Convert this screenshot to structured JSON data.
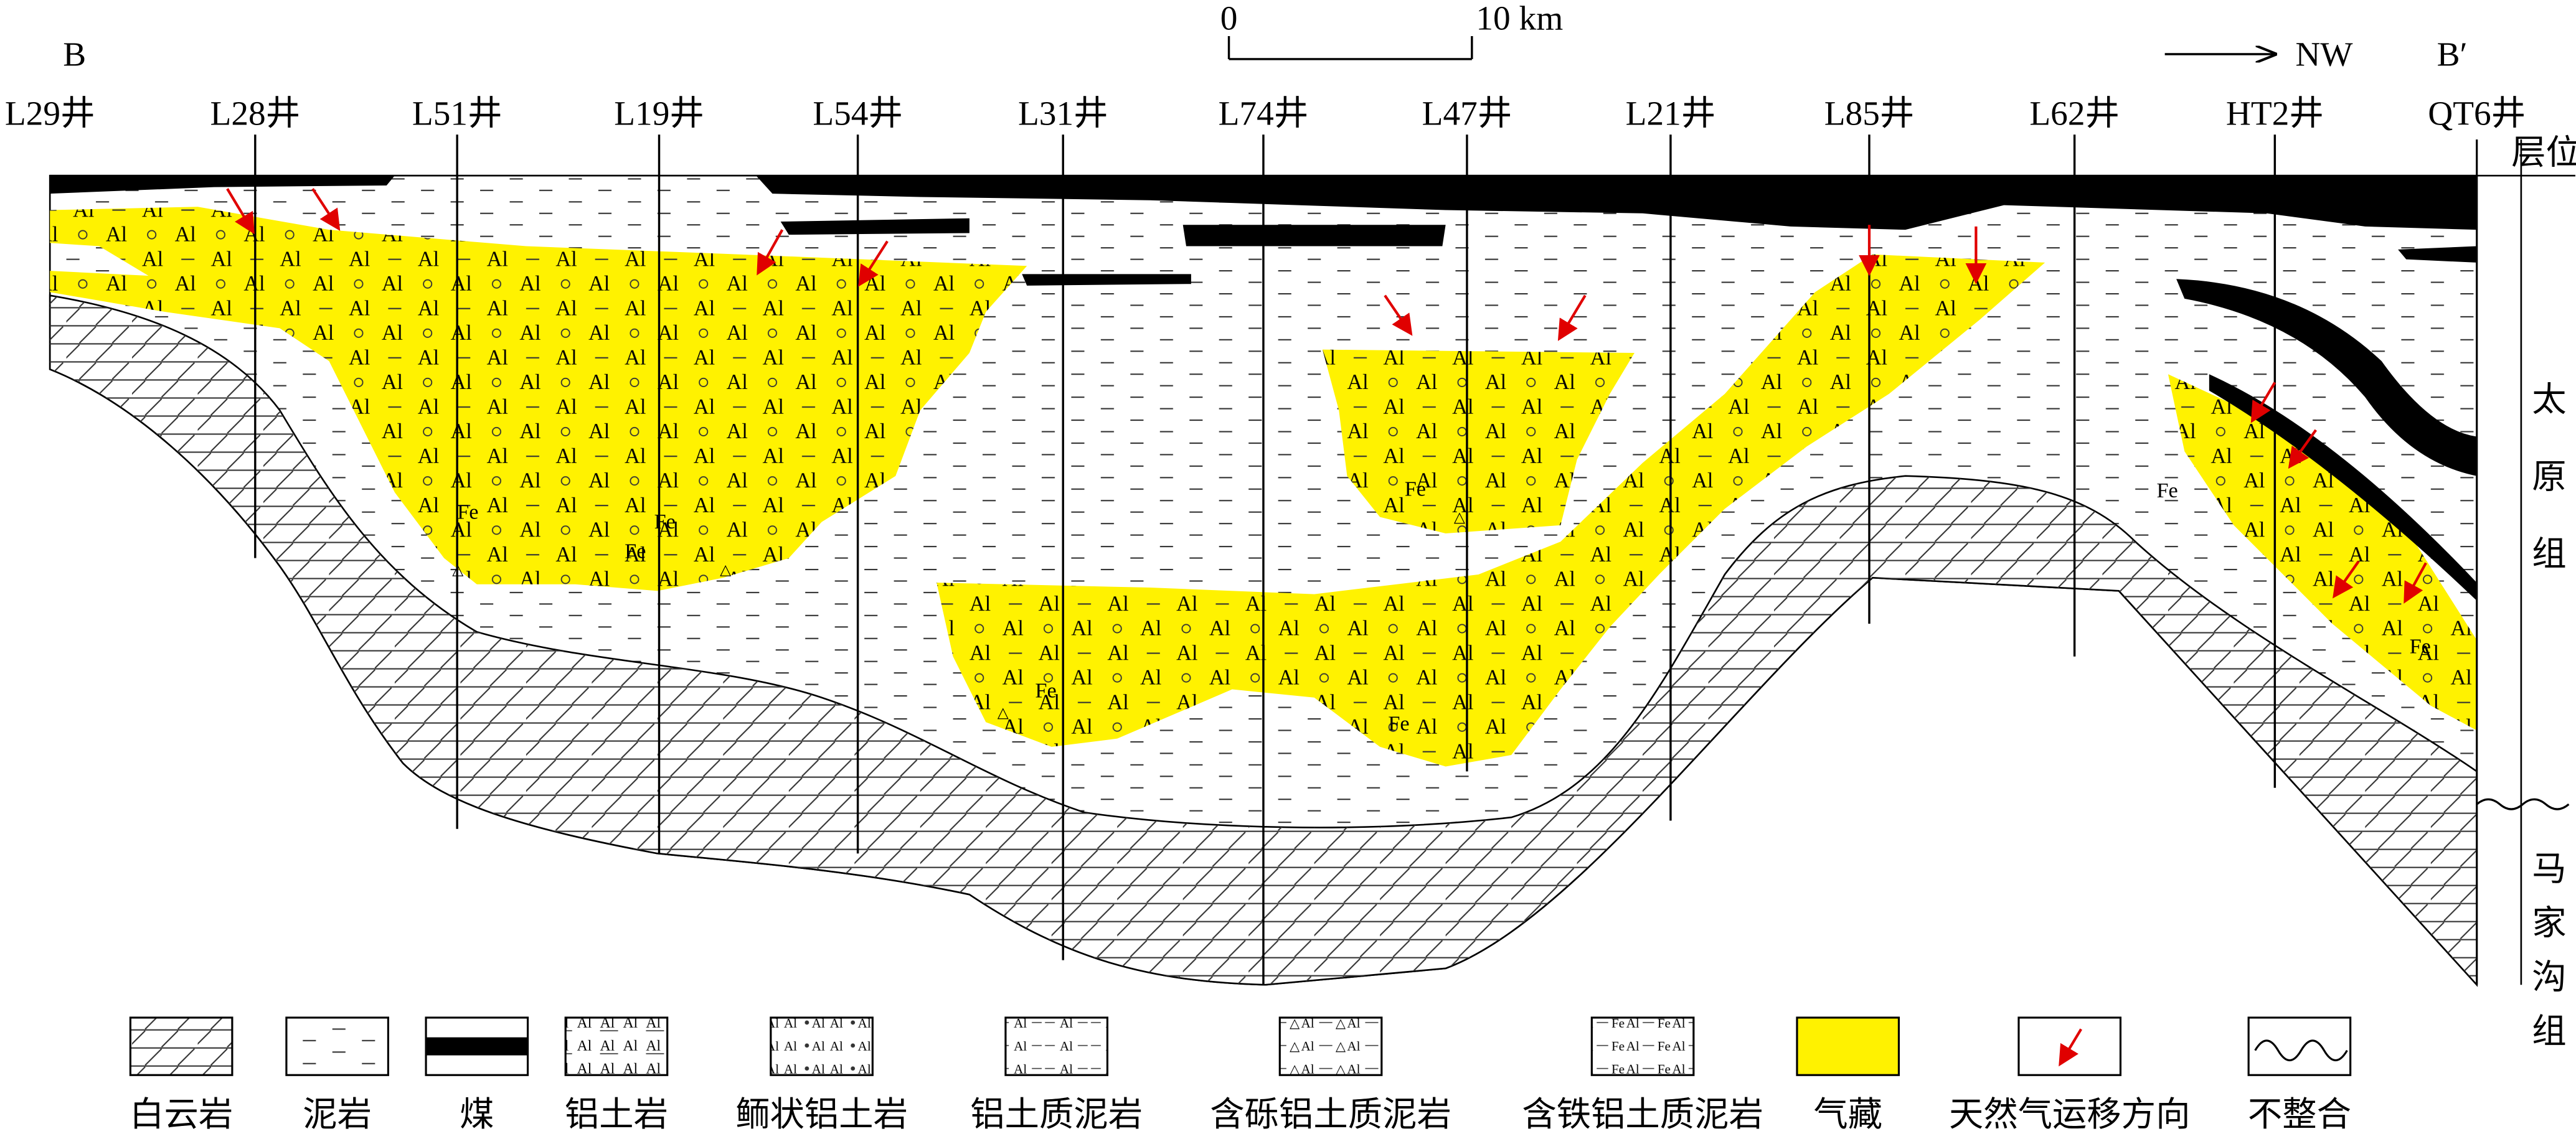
{
  "header": {
    "start_label": "B",
    "end_label": "B′",
    "direction": "NW",
    "scale_start": "0",
    "scale_end": "10 km"
  },
  "wells": [
    "L29井",
    "L28井",
    "L51井",
    "L19井",
    "L54井",
    "L31井",
    "L74井",
    "L47井",
    "L21井",
    "L85井",
    "L62井",
    "HT2井",
    "QT6井"
  ],
  "strata": {
    "column_title": "层位",
    "upper": "太原组",
    "lower": "马家沟组"
  },
  "symbols": {
    "aluminum": "Al",
    "iron": "Fe",
    "gravel": "△"
  },
  "legend": [
    "白云岩",
    "泥岩",
    "煤",
    "铝土岩",
    "鲕状铝土岩",
    "铝土质泥岩",
    "含砾铝土质泥岩",
    "含铁铝土质泥岩",
    "气藏",
    "天然气运移方向",
    "不整合"
  ]
}
